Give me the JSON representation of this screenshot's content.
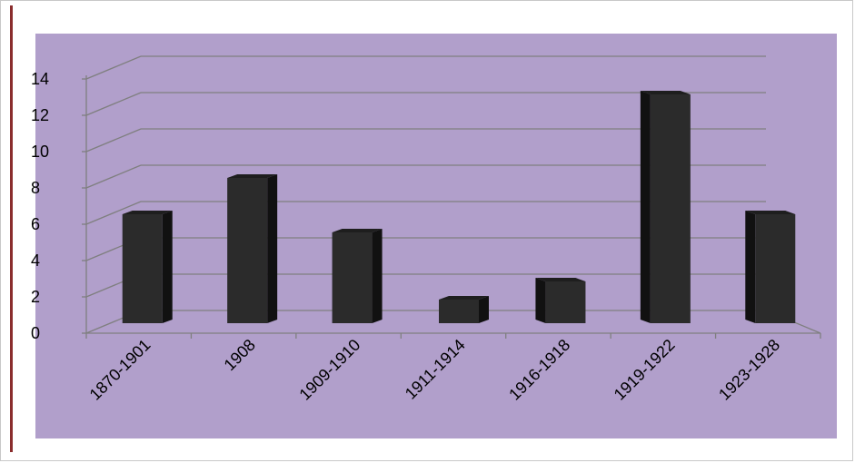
{
  "chart_data": {
    "type": "bar",
    "categories": [
      "1870-1901",
      "1908",
      "1909-1910",
      "1911-1914",
      "1916-1918",
      "1919-1922",
      "1923-1928"
    ],
    "values": [
      6,
      8,
      5,
      1.3,
      2.3,
      12.6,
      6
    ],
    "ylim": [
      0,
      14
    ],
    "yticks": [
      0,
      2,
      4,
      6,
      8,
      10,
      12,
      14
    ],
    "grid": true,
    "legend": "none",
    "colors": {
      "plot_background": "#b19fcb",
      "bar_front": "#2b2b2b",
      "bar_side": "#111111",
      "bar_top": "#1e1e1e",
      "gridline": "#7f7f7f",
      "accent_rule": "#8a2d2d"
    }
  }
}
